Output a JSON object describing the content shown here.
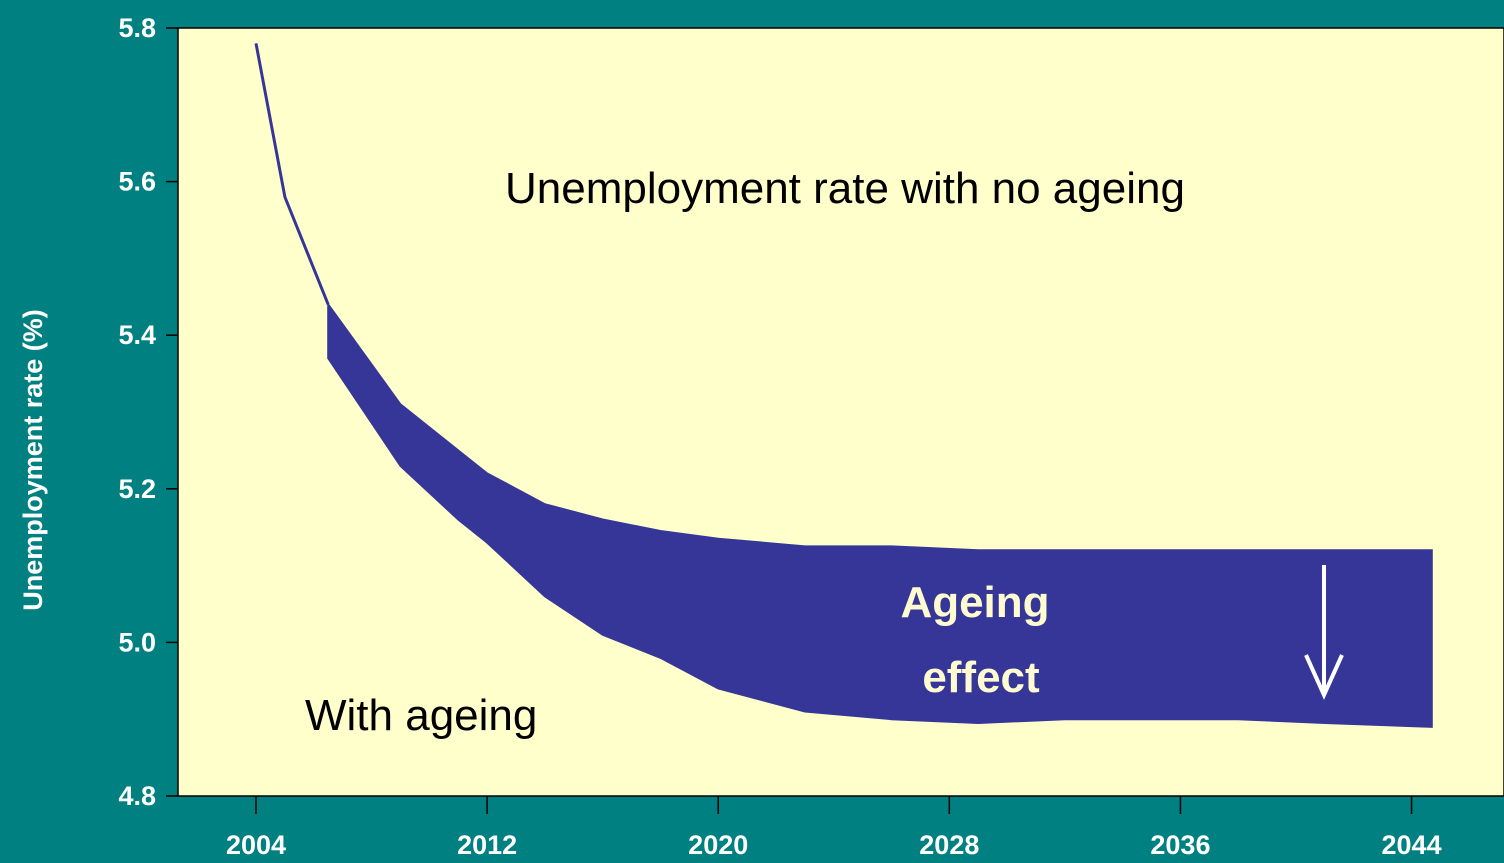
{
  "chart_data": {
    "type": "area",
    "ylabel": "Unemployment rate (%)",
    "xlabel": "",
    "x_ticks": [
      "2004",
      "2012",
      "2020",
      "2028",
      "2036",
      "2044"
    ],
    "y_ticks": [
      "4.8",
      "5.0",
      "5.2",
      "5.4",
      "5.6",
      "5.8"
    ],
    "xlim": [
      2001.3,
      2047.2
    ],
    "ylim": [
      4.8,
      5.8
    ],
    "grid": false,
    "series": [
      {
        "name": "Unemployment rate with no ageing",
        "x": [
          2004.0,
          2005.0,
          2006.5,
          2009.0,
          2011.0,
          2012.0,
          2014.0,
          2016.0,
          2018.0,
          2020.0,
          2023.0,
          2026.0,
          2029.0,
          2032.0,
          2035.0,
          2038.0,
          2041.0,
          2044.7
        ],
        "values": [
          5.78,
          5.58,
          5.44,
          5.31,
          5.25,
          5.22,
          5.18,
          5.16,
          5.145,
          5.135,
          5.125,
          5.125,
          5.12,
          5.12,
          5.12,
          5.12,
          5.12,
          5.12
        ]
      },
      {
        "name": "With ageing",
        "x": [
          2004.0,
          2005.0,
          2006.5,
          2009.0,
          2011.0,
          2012.0,
          2014.0,
          2016.0,
          2018.0,
          2020.0,
          2023.0,
          2026.0,
          2029.0,
          2032.0,
          2035.0,
          2038.0,
          2041.0,
          2044.7
        ],
        "values": [
          5.78,
          5.58,
          5.37,
          5.23,
          5.16,
          5.13,
          5.06,
          5.01,
          4.98,
          4.94,
          4.91,
          4.9,
          4.895,
          4.9,
          4.9,
          4.9,
          4.895,
          4.89
        ]
      }
    ],
    "annotations": {
      "no_ageing_label": "Unemployment rate with no ageing",
      "with_ageing_label": "With ageing",
      "effect_label_line1": "Ageing",
      "effect_label_line2": "effect"
    },
    "colors": {
      "background": "#008080",
      "plot_area": "#ffffcc",
      "band_fill": "#363698",
      "text": "#ffffff",
      "annotation_text": "#000000",
      "effect_text": "#fffbd0"
    }
  }
}
